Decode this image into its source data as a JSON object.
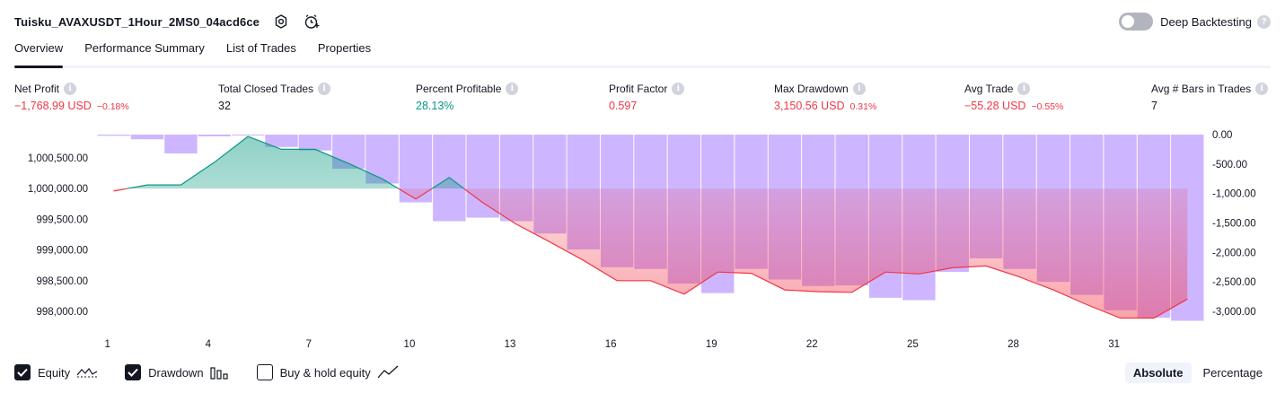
{
  "header": {
    "strategy_title": "Tuisku_AVAXUSDT_1Hour_2MS0_04acd6ce",
    "deep_backtesting_label": "Deep Backtesting",
    "deep_backtesting_enabled": false
  },
  "tabs": [
    {
      "label": "Overview",
      "active": true
    },
    {
      "label": "Performance Summary",
      "active": false
    },
    {
      "label": "List of Trades",
      "active": false
    },
    {
      "label": "Properties",
      "active": false
    }
  ],
  "metrics": {
    "net_profit": {
      "label": "Net Profit",
      "value": "−1,768.99 USD",
      "pct": "−0.18%"
    },
    "total_closed_trades": {
      "label": "Total Closed Trades",
      "value": "32"
    },
    "percent_profitable": {
      "label": "Percent Profitable",
      "value": "28.13%"
    },
    "profit_factor": {
      "label": "Profit Factor",
      "value": "0.597"
    },
    "max_drawdown": {
      "label": "Max Drawdown",
      "value": "3,150.56 USD",
      "pct": "0.31%"
    },
    "avg_trade": {
      "label": "Avg Trade",
      "value": "−55.28 USD",
      "pct": "−0.55%"
    },
    "avg_bars_in_trades": {
      "label": "Avg # Bars in Trades",
      "value": "7"
    }
  },
  "chart_data": {
    "type": "line",
    "x": [
      1,
      2,
      3,
      4,
      5,
      6,
      7,
      8,
      9,
      10,
      11,
      12,
      13,
      14,
      15,
      16,
      17,
      18,
      19,
      20,
      21,
      22,
      23,
      24,
      25,
      26,
      27,
      28,
      29,
      30,
      31,
      32,
      33
    ],
    "x_tick_labels": [
      "1",
      "4",
      "7",
      "10",
      "13",
      "16",
      "19",
      "22",
      "25",
      "28",
      "31"
    ],
    "left_axis": {
      "tick_labels": [
        "1,000,500.00",
        "1,000,000.00",
        "999,500.00",
        "999,000.00",
        "998,500.00",
        "998,000.00"
      ]
    },
    "right_axis": {
      "tick_labels": [
        "0.00",
        "-500.00",
        "-1,000.00",
        "-1,500.00",
        "-2,000.00",
        "-2,500.00",
        "-3,000.00"
      ]
    },
    "series": [
      {
        "name": "Equity",
        "axis": "left",
        "values": [
          999960,
          1000060,
          1000060,
          1000430,
          1000850,
          1000640,
          1000640,
          1000410,
          1000160,
          999830,
          1000180,
          999770,
          999420,
          999130,
          998830,
          998500,
          998500,
          998280,
          998640,
          998620,
          998350,
          998320,
          998310,
          998640,
          998610,
          998710,
          998740,
          998560,
          998350,
          998110,
          997890,
          997890,
          998200
        ]
      },
      {
        "name": "Drawdown",
        "axis": "right",
        "values": [
          -20,
          -80,
          -320,
          -30,
          0,
          -210,
          -270,
          -580,
          -830,
          -1150,
          -1470,
          -1410,
          -1470,
          -1680,
          -1950,
          -2250,
          -2280,
          -2530,
          -2690,
          -2280,
          -2460,
          -2570,
          -2560,
          -2770,
          -2810,
          -2330,
          -2100,
          -2280,
          -2500,
          -2720,
          -2980,
          -3110,
          -3160
        ]
      }
    ],
    "colors": {
      "profit": "#089981",
      "loss": "#f23645",
      "drawdown": "#c6a8ff"
    }
  },
  "footer": {
    "legend": [
      {
        "label": "Equity",
        "checked": true
      },
      {
        "label": "Drawdown",
        "checked": true
      },
      {
        "label": "Buy & hold equity",
        "checked": false
      }
    ],
    "scale_buttons": [
      {
        "label": "Absolute",
        "active": true
      },
      {
        "label": "Percentage",
        "active": false
      }
    ]
  }
}
